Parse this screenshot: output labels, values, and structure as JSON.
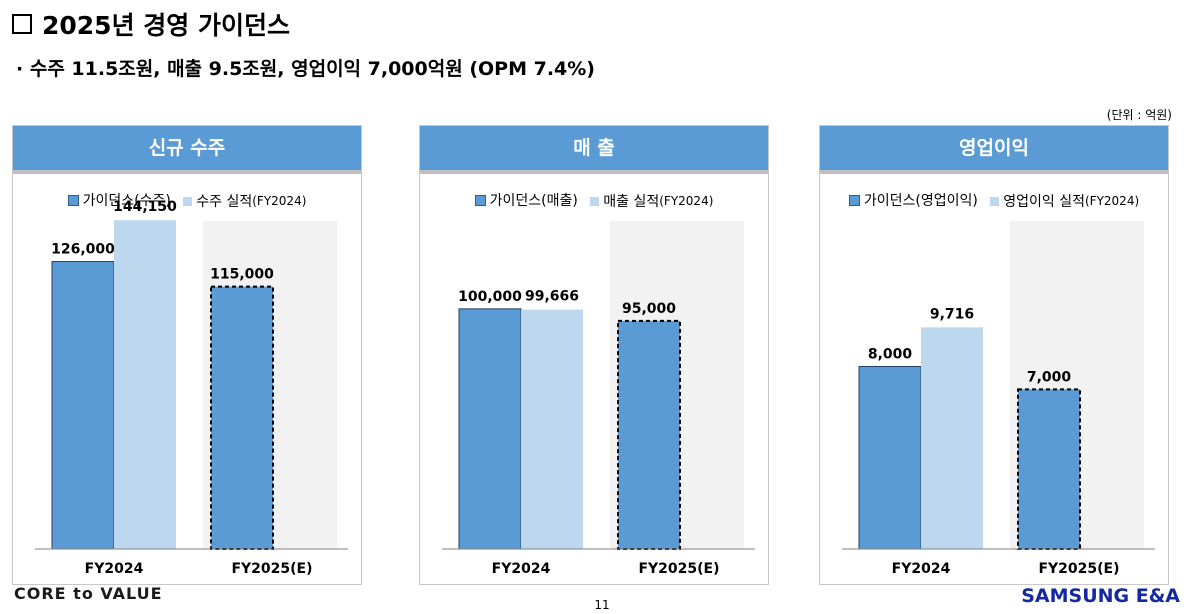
{
  "header": {
    "title": "2025년 경영 가이던스",
    "subtitle": "· 수주 11.5조원, 매출 9.5조원, 영업이익 7,000억원 (OPM 7.4%)",
    "unit": "(단위 : 억원)"
  },
  "colors": {
    "guidance": "#5b9bd5",
    "actual": "#bdd7ee",
    "header": "#5b9bd5",
    "shade": "#f2f2f2"
  },
  "panels": [
    {
      "header": "신규 수주",
      "legend": {
        "guidance": "가이던스(수주)",
        "actual_main": "수주 실적",
        "actual_small": "(FY2024)"
      },
      "categories": [
        "FY2024",
        "FY2025(E)"
      ]
    },
    {
      "header": "매 출",
      "legend": {
        "guidance": "가이던스(매출)",
        "actual_main": "매출 실적",
        "actual_small": "(FY2024)"
      },
      "categories": [
        "FY2024",
        "FY2025(E)"
      ]
    },
    {
      "header": "영업이익",
      "legend": {
        "guidance": "가이던스(영업이익)",
        "actual_main": "영업이익 실적",
        "actual_small": "(FY2024)"
      },
      "categories": [
        "FY2024",
        "FY2025(E)"
      ]
    }
  ],
  "chart_data": [
    {
      "type": "bar",
      "title": "신규 수주",
      "categories": [
        "FY2024",
        "FY2025(E)"
      ],
      "series": [
        {
          "name": "가이던스(수주)",
          "values": [
            126000,
            115000
          ],
          "labels": [
            "126,000",
            "115,000"
          ]
        },
        {
          "name": "수주 실적(FY2024)",
          "values": [
            144150,
            null
          ],
          "labels": [
            "144,150",
            ""
          ]
        }
      ],
      "ylim": [
        0,
        160000
      ],
      "estimate_category": "FY2025(E)"
    },
    {
      "type": "bar",
      "title": "매 출",
      "categories": [
        "FY2024",
        "FY2025(E)"
      ],
      "series": [
        {
          "name": "가이던스(매출)",
          "values": [
            100000,
            95000
          ],
          "labels": [
            "100,000",
            "95,000"
          ]
        },
        {
          "name": "매출 실적(FY2024)",
          "values": [
            99666,
            null
          ],
          "labels": [
            "99,666",
            ""
          ]
        }
      ],
      "ylim": [
        0,
        152000
      ],
      "estimate_category": "FY2025(E)"
    },
    {
      "type": "bar",
      "title": "영업이익",
      "categories": [
        "FY2024",
        "FY2025(E)"
      ],
      "series": [
        {
          "name": "가이던스(영업이익)",
          "values": [
            8000,
            7000
          ],
          "labels": [
            "8,000",
            "7,000"
          ]
        },
        {
          "name": "영업이익 실적(FY2024)",
          "values": [
            9716,
            null
          ],
          "labels": [
            "9,716",
            ""
          ]
        }
      ],
      "ylim": [
        0,
        16000
      ],
      "estimate_category": "FY2025(E)"
    }
  ],
  "footer": {
    "slogan": "CORE to VALUE",
    "page_number": "11",
    "brand": "SAMSUNG E&A"
  }
}
